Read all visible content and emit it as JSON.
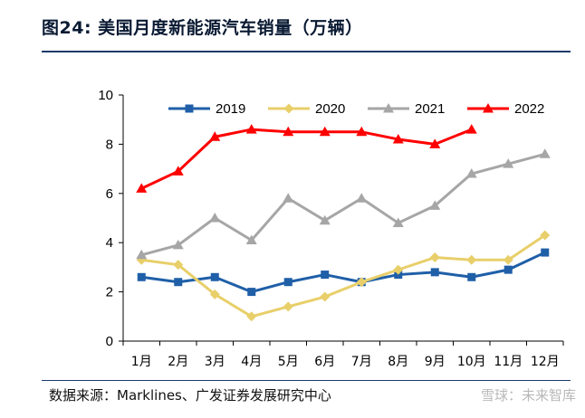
{
  "figure": {
    "title": "图24:  美国月度新能源汽车销量（万辆）",
    "source": "数据来源：Marklines、广发证券发展研究中心",
    "watermark": "雪球：未来智库"
  },
  "chart_data": {
    "type": "line",
    "title": "",
    "xlabel": "",
    "ylabel": "",
    "categories": [
      "1月",
      "2月",
      "3月",
      "4月",
      "5月",
      "6月",
      "7月",
      "8月",
      "9月",
      "10月",
      "11月",
      "12月"
    ],
    "ylim": [
      0,
      10
    ],
    "yticks": [
      0,
      2,
      4,
      6,
      8,
      10
    ],
    "grid": false,
    "legend_position": "top",
    "series": [
      {
        "name": "2019",
        "color": "#1f5fa8",
        "marker": "square",
        "values": [
          2.6,
          2.4,
          2.6,
          2.0,
          2.4,
          2.7,
          2.4,
          2.7,
          2.8,
          2.6,
          2.9,
          3.6
        ]
      },
      {
        "name": "2020",
        "color": "#e8cf6a",
        "marker": "diamond",
        "values": [
          3.3,
          3.1,
          1.9,
          1.0,
          1.4,
          1.8,
          2.4,
          2.9,
          3.4,
          3.3,
          3.3,
          4.3
        ]
      },
      {
        "name": "2021",
        "color": "#a6a6a6",
        "marker": "triangle",
        "values": [
          3.5,
          3.9,
          5.0,
          4.1,
          5.8,
          4.9,
          5.8,
          4.8,
          5.5,
          6.8,
          7.2,
          7.6
        ]
      },
      {
        "name": "2022",
        "color": "#ff0000",
        "marker": "triangle",
        "values": [
          6.2,
          6.9,
          8.3,
          8.6,
          8.5,
          8.5,
          8.5,
          8.2,
          8.0,
          8.6,
          null,
          null
        ]
      }
    ]
  }
}
